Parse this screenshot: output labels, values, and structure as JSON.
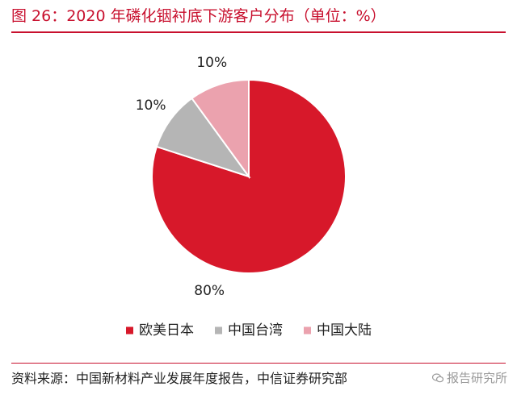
{
  "figure": {
    "title": "图 26：2020 年磷化铟衬底下游客户分布（单位：%）",
    "source": "资料来源：中国新材料产业发展年度报告，中信证券研究部",
    "watermark": "报告研究所"
  },
  "colors": {
    "accent": "#c8102e",
    "series": [
      "#d7182a",
      "#b5b5b5",
      "#eba2ae"
    ]
  },
  "chart_data": {
    "type": "pie",
    "title": "2020 年磷化铟衬底下游客户分布（单位：%）",
    "categories": [
      "欧美日本",
      "中国台湾",
      "中国大陆"
    ],
    "values": [
      80,
      10,
      10
    ],
    "data_labels": [
      "80%",
      "10%",
      "10%"
    ],
    "start_angle_deg": 0,
    "direction": "clockwise",
    "legend": {
      "position": "bottom",
      "items": [
        "欧美日本",
        "中国台湾",
        "中国大陆"
      ]
    }
  }
}
